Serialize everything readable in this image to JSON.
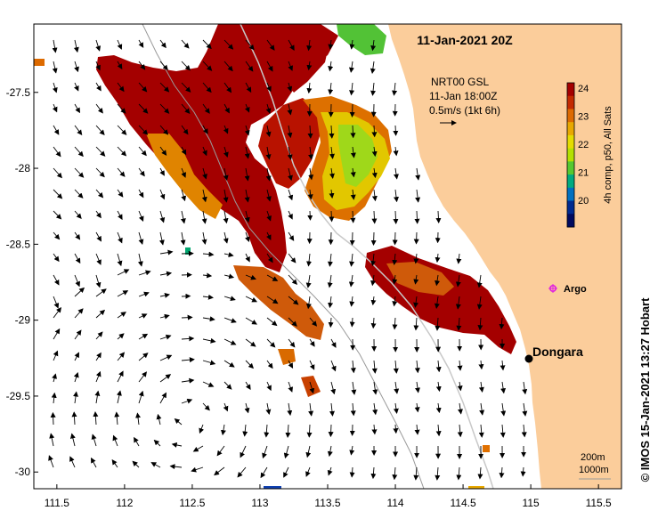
{
  "title": "11-Jan-2021 20Z",
  "vector_info": {
    "line1": "NRT00 GSL",
    "line2": "11-Jan 18:00Z",
    "line3": "0.5m/s (1kt 6h)"
  },
  "colorbar": {
    "label": "4h comp, p50, All Sats",
    "ticks": [
      "24",
      "23",
      "22",
      "21",
      "20"
    ],
    "colors": [
      "#a50000",
      "#c42a00",
      "#dd6a00",
      "#e8a800",
      "#e4dc00",
      "#b4e000",
      "#55c830",
      "#00aa80",
      "#0070c0",
      "#002a90",
      "#000a60"
    ]
  },
  "places": {
    "dongara": "Dongara",
    "argo": "Argo"
  },
  "isobath_legend": {
    "line1": "200m",
    "line2": "1000m"
  },
  "credit": "© IMOS 15-Jan-2021 13:27 Hobart",
  "chart_data": {
    "type": "heatmap",
    "title": "11-Jan-2021 20Z",
    "variable_scale": {
      "min": 20,
      "max": 24
    },
    "x_axis": {
      "ticks": [
        "111.5",
        "112",
        "112.5",
        "113",
        "113.5",
        "114",
        "114.5",
        "115",
        "115.5"
      ],
      "values": [
        111.5,
        112,
        112.5,
        113,
        113.5,
        114,
        114.5,
        115,
        115.5
      ],
      "range": [
        111.33,
        115.67
      ]
    },
    "y_axis": {
      "ticks": [
        "-27.5",
        "-28",
        "-28.5",
        "-29",
        "-29.5",
        "-30"
      ],
      "values": [
        -27.5,
        -28,
        -28.5,
        -29,
        -29.5,
        -30
      ],
      "range": [
        -30.11,
        -27.05
      ]
    },
    "markers": [
      {
        "name": "Dongara",
        "lon": 114.93,
        "lat": -29.25
      },
      {
        "name": "Argo",
        "lon": 115.12,
        "lat": -28.82
      }
    ]
  }
}
